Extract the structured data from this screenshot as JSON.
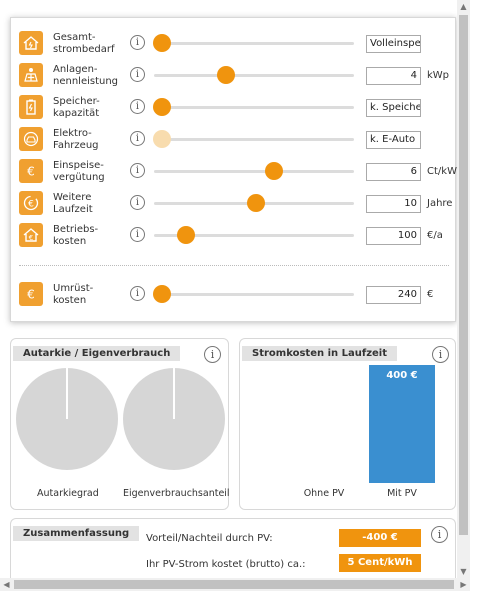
{
  "settings": {
    "rows": [
      {
        "label": "Gesamt-\nstrombedarf",
        "value": "Volleinspeis",
        "unit": "",
        "slider": 0.0,
        "icon": "house-icon",
        "disabled": false
      },
      {
        "label": "Anlagen-\nnennleistung",
        "value": "4",
        "unit": "kWp",
        "slider": 0.32,
        "icon": "solar-panel-icon",
        "disabled": false
      },
      {
        "label": "Speicher-\nkapazität",
        "value": "k. Speicher",
        "unit": "",
        "slider": 0.0,
        "icon": "battery-icon",
        "disabled": false
      },
      {
        "label": "Elektro-\nFahrzeug",
        "value": "k. E-Auto",
        "unit": "",
        "slider": 0.0,
        "icon": "car-icon",
        "disabled": true
      },
      {
        "label": "Einspeise-\nvergütung",
        "value": "6",
        "unit": "Ct/kWh",
        "slider": 0.56,
        "icon": "euro-icon",
        "disabled": false
      },
      {
        "label": "Weitere\nLaufzeit",
        "value": "10",
        "unit": "Jahre",
        "slider": 0.47,
        "icon": "euro-cycle-icon",
        "disabled": false
      },
      {
        "label": "Betriebs-\nkosten",
        "value": "100",
        "unit": "€/a",
        "slider": 0.12,
        "icon": "house-euro-icon",
        "disabled": false
      }
    ],
    "conversion": {
      "label": "Umrüst-\nkosten",
      "value": "240",
      "unit": "€",
      "slider": 0.0,
      "icon": "euro-icon"
    },
    "info_glyph": "i"
  },
  "autarkie": {
    "title": "Autarkie / Eigenverbrauch",
    "pie1_label": "Autarkiegrad",
    "pie2_label": "Eigenverbrauchsanteil",
    "pie1_value": 0,
    "pie2_value": 0
  },
  "stromkosten": {
    "title": "Stromkosten in Laufzeit",
    "chart_data": {
      "type": "bar",
      "categories": [
        "Ohne PV",
        "Mit PV"
      ],
      "values": [
        0,
        400
      ],
      "data_labels": [
        "",
        "400 €"
      ],
      "ylim": [
        0,
        400
      ]
    }
  },
  "summary": {
    "title": "Zusammenfassung",
    "line1": "Vorteil/Nachteil durch PV:",
    "value1": "-400 €",
    "line2": "Ihr PV-Strom kostet (brutto) ca.:",
    "value2": "5 Cent/kWh"
  },
  "colors": {
    "accent": "#f0940e",
    "bar": "#3a8fd0",
    "pie": "#d6d6d6"
  }
}
